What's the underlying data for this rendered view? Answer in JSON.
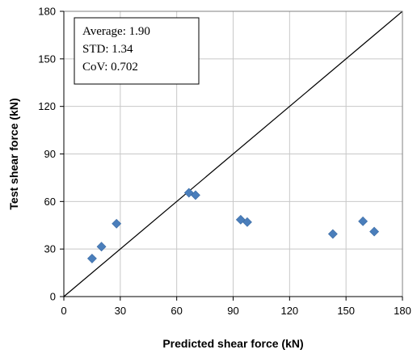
{
  "chart_data": {
    "type": "scatter",
    "xlabel": "Predicted shear force (kN)",
    "ylabel": "Test shear force (kN)",
    "xlim": [
      0,
      180
    ],
    "ylim": [
      0,
      180
    ],
    "x_ticks": [
      0,
      30,
      60,
      90,
      120,
      150,
      180
    ],
    "y_ticks": [
      0,
      30,
      60,
      90,
      120,
      150,
      180
    ],
    "grid": true,
    "reference_line": {
      "type": "y=x",
      "from": [
        0,
        0
      ],
      "to": [
        180,
        180
      ]
    },
    "series": [
      {
        "marker": "diamond",
        "color": "#4a7ebb",
        "points": [
          {
            "x": 15,
            "y": 24
          },
          {
            "x": 20,
            "y": 31.5
          },
          {
            "x": 28,
            "y": 46
          },
          {
            "x": 66.5,
            "y": 65.5
          },
          {
            "x": 70,
            "y": 64
          },
          {
            "x": 94,
            "y": 48.5
          },
          {
            "x": 97.5,
            "y": 47
          },
          {
            "x": 143,
            "y": 39.5
          },
          {
            "x": 159,
            "y": 47.5
          },
          {
            "x": 165,
            "y": 41
          }
        ]
      }
    ],
    "stats_box": {
      "lines": [
        "Average: 1.90",
        "STD: 1.34",
        "CoV: 0.702"
      ],
      "placement": "top-left"
    }
  }
}
